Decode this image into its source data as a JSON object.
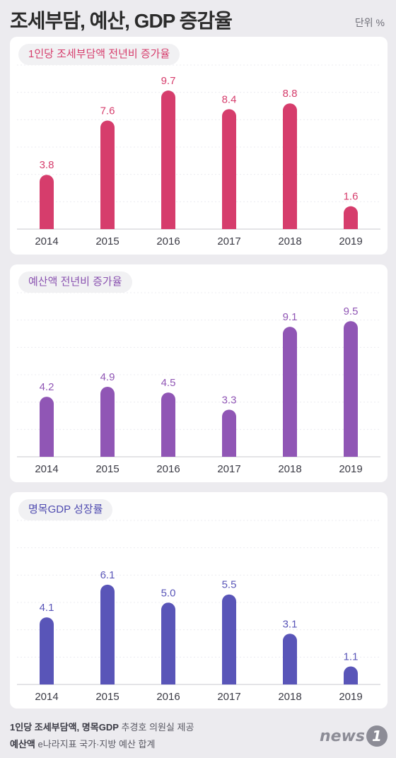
{
  "header": {
    "title": "조세부담, 예산, GDP 증감율",
    "unit": "단위 %"
  },
  "chart_data": [
    {
      "type": "bar",
      "title": "1인당 조세부담액 전년비 증가율",
      "categories": [
        "2014",
        "2015",
        "2016",
        "2017",
        "2018",
        "2019"
      ],
      "values": [
        3.8,
        7.6,
        9.7,
        8.4,
        8.8,
        1.6
      ],
      "labels": [
        "3.8",
        "7.6",
        "9.7",
        "8.4",
        "8.8",
        "1.6"
      ],
      "color": "#d63d6c",
      "ylim": [
        0,
        10
      ],
      "grid": true
    },
    {
      "type": "bar",
      "title": "예산액 전년비 증가율",
      "categories": [
        "2014",
        "2015",
        "2016",
        "2017",
        "2018",
        "2019"
      ],
      "values": [
        4.2,
        4.9,
        4.5,
        3.3,
        9.1,
        9.5
      ],
      "labels": [
        "4.2",
        "4.9",
        "4.5",
        "3.3",
        "9.1",
        "9.5"
      ],
      "color": "#9056b5",
      "ylim": [
        0,
        10
      ],
      "grid": true
    },
    {
      "type": "bar",
      "title": "명목GDP 성장률",
      "categories": [
        "2014",
        "2015",
        "2016",
        "2017",
        "2018",
        "2019"
      ],
      "values": [
        4.1,
        6.1,
        5.0,
        5.5,
        3.1,
        1.1
      ],
      "labels": [
        "4.1",
        "6.1",
        "5.0",
        "5.5",
        "3.1",
        "1.1"
      ],
      "color": "#5955b8",
      "ylim": [
        0,
        7
      ],
      "grid": true
    }
  ],
  "footer": {
    "line1_bold": "1인당 조세부담액, 명목GDP",
    "line1_rest": " 추경호 의원실 제공",
    "line2_bold": "예산액",
    "line2_rest": " e나라지표 국가·지방 예산 합계"
  },
  "logo": {
    "text": "news",
    "badge": "1"
  }
}
